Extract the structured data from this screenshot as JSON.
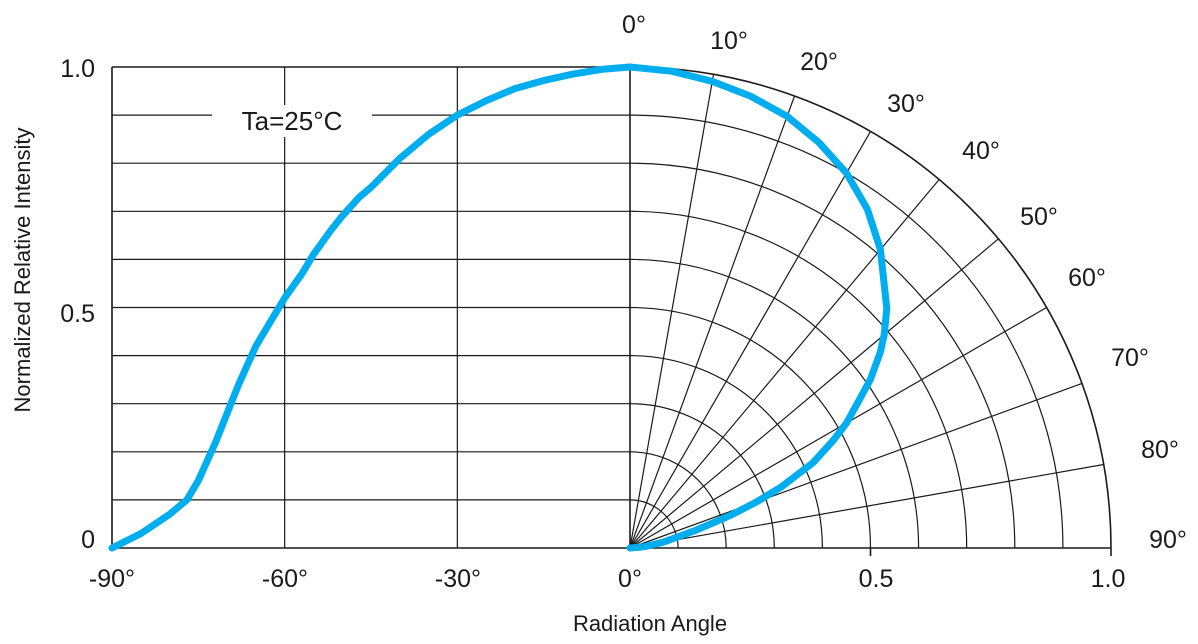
{
  "chart_data": {
    "type": "line",
    "title": "",
    "xlabel": "Radiation Angle",
    "ylabel": "Normalized Relative Intensity",
    "annotation": "Ta=25°C",
    "colors": {
      "curve": "#00aeef",
      "grid": "#1a1a1a"
    },
    "cartesian": {
      "xlim": [
        -90,
        0
      ],
      "ylim": [
        0,
        1.0
      ],
      "x_ticks": [
        "-90°",
        "-60°",
        "-30°",
        "0°"
      ],
      "y_ticks": [
        "0",
        "0.5",
        "1.0"
      ],
      "grid": true
    },
    "polar": {
      "angle_range": [
        0,
        90
      ],
      "radius_range": [
        0,
        1.0
      ],
      "angle_ticks": [
        "0°",
        "10°",
        "20°",
        "30°",
        "40°",
        "50°",
        "60°",
        "70°",
        "80°",
        "90°"
      ],
      "radius_ticks": [
        "0.5",
        "1.0"
      ],
      "grid": true
    },
    "series": [
      {
        "x": [
          -90,
          -85,
          -80,
          -77,
          -75,
          -72,
          -70,
          -68,
          -65,
          -62,
          -60,
          -57,
          -55,
          -52,
          -50,
          -47,
          -45,
          -40,
          -35,
          -30,
          -25,
          -20,
          -15,
          -10,
          -5,
          0
        ],
        "y": [
          0,
          0.03,
          0.07,
          0.1,
          0.14,
          0.22,
          0.28,
          0.34,
          0.42,
          0.48,
          0.52,
          0.57,
          0.61,
          0.66,
          0.69,
          0.73,
          0.75,
          0.81,
          0.86,
          0.9,
          0.93,
          0.955,
          0.972,
          0.985,
          0.995,
          1.0
        ]
      }
    ]
  }
}
